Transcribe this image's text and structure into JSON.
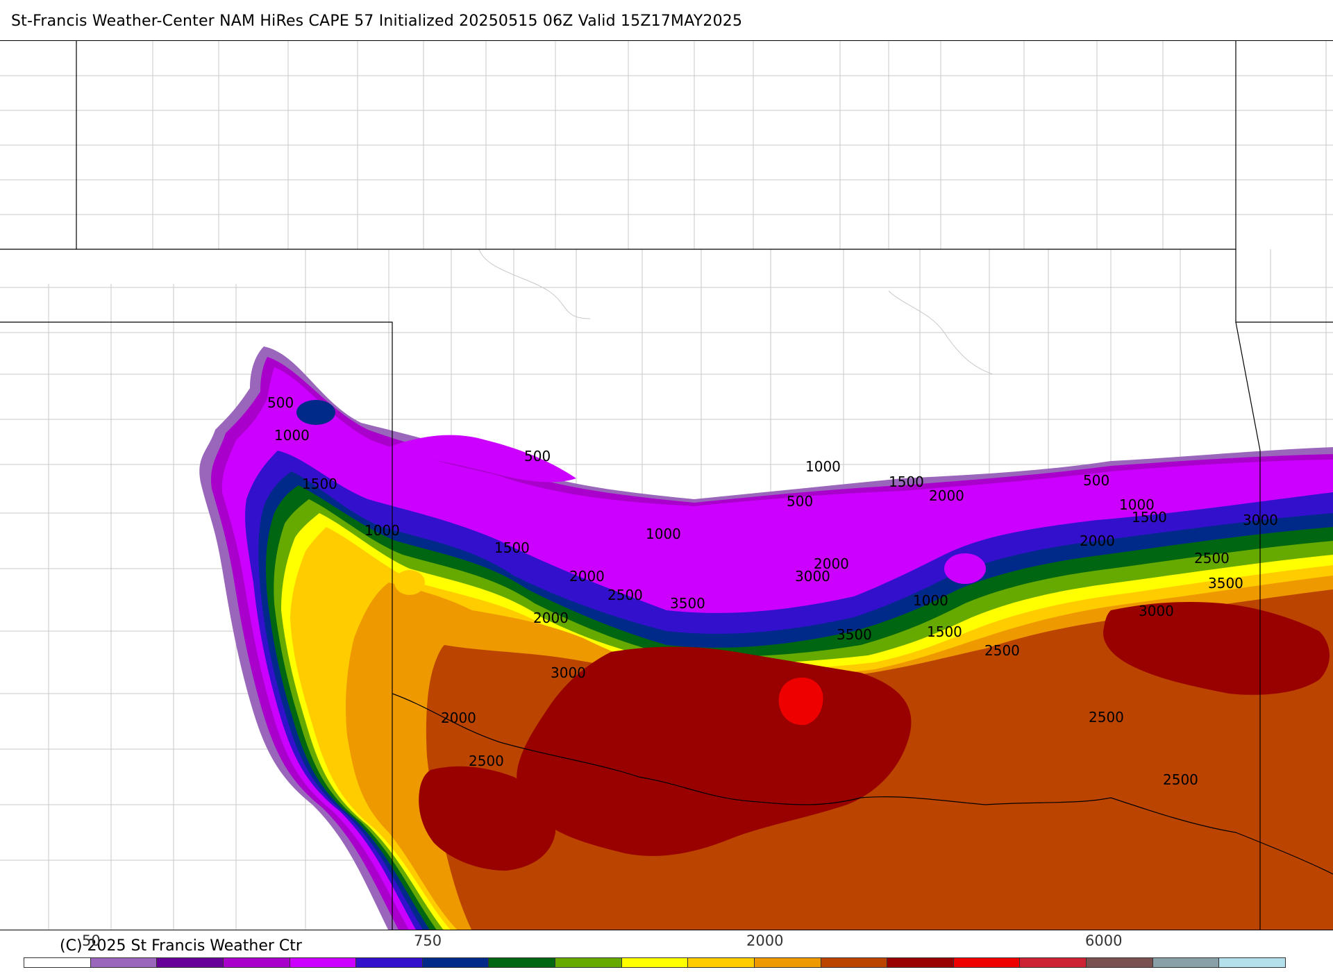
{
  "title": "St-Francis Weather-Center NAM HiRes CAPE  57 Initialized 20250515 06Z Valid 15Z17MAY2025",
  "copyright": "(C) 2025 St Francis Weather Ctr",
  "colorbar": {
    "labels": [
      "50",
      "750",
      "2000",
      "6000"
    ],
    "colors": [
      "#ffffff",
      "#9966bb",
      "#660099",
      "#aa00cc",
      "#cc00ff",
      "#3311cc",
      "#002a8a",
      "#006611",
      "#66aa00",
      "#ffff00",
      "#ffcc00",
      "#ee9900",
      "#bb4400",
      "#990000",
      "#ee0000",
      "#cc2233",
      "#7a5050",
      "#8aa0a8",
      "#b3e0ea"
    ]
  },
  "contour_labels": [
    "500",
    "1000",
    "1500",
    "1000",
    "500",
    "1500",
    "2000",
    "1000",
    "2500",
    "3500",
    "2000",
    "1000",
    "500",
    "1500",
    "2000",
    "2000",
    "3000",
    "3500",
    "1000",
    "1500",
    "2500",
    "500",
    "1000",
    "1500",
    "2000",
    "3000",
    "2500",
    "3500",
    "3000",
    "3000",
    "2000",
    "2500",
    "2500",
    "2500"
  ],
  "legend_colors": {
    "white": "#ffffff",
    "lightpurple": "#9966bb",
    "darkpurple": "#660099",
    "magenta": "#aa00cc",
    "violet": "#cc00ff",
    "blue": "#3311cc",
    "navy": "#002a8a",
    "darkgreen": "#006611",
    "green": "#66aa00",
    "yellow": "#ffff00",
    "gold": "#ffcc00",
    "orange": "#ee9900",
    "rust": "#bb4400",
    "darkred": "#990000",
    "red": "#ee0000"
  }
}
